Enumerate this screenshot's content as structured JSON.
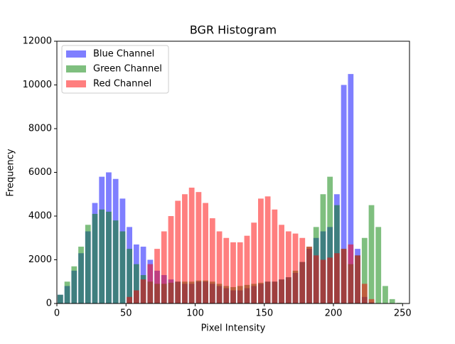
{
  "chart_data": {
    "type": "histogram",
    "title": "BGR Histogram",
    "x_label": "Pixel Intensity",
    "y_label": "Frequency",
    "bins": [
      0,
      5,
      10,
      15,
      20,
      25,
      30,
      35,
      40,
      45,
      50,
      55,
      60,
      65,
      70,
      75,
      80,
      85,
      90,
      95,
      100,
      105,
      110,
      115,
      120,
      125,
      130,
      135,
      140,
      145,
      150,
      155,
      160,
      165,
      170,
      175,
      180,
      185,
      190,
      195,
      200,
      205,
      210,
      215,
      220,
      225,
      230,
      235,
      240,
      245,
      250,
      255
    ],
    "series": [
      {
        "name": "Blue Channel",
        "color": "#0000ff",
        "values": [
          400,
          800,
          1500,
          2300,
          3300,
          4600,
          5800,
          6000,
          5700,
          4800,
          3500,
          2700,
          2600,
          2000,
          1500,
          1300,
          1100,
          1000,
          900,
          900,
          1000,
          1000,
          900,
          800,
          700,
          600,
          600,
          700,
          800,
          900,
          1000,
          1000,
          1100,
          1200,
          1400,
          1900,
          2500,
          3000,
          3300,
          3500,
          5000,
          10000,
          10500,
          2500,
          300,
          50,
          0,
          0,
          0,
          0,
          0
        ]
      },
      {
        "name": "Green Channel",
        "color": "#008000",
        "values": [
          400,
          1000,
          1700,
          2600,
          3600,
          4100,
          4300,
          4200,
          3800,
          3300,
          2500,
          1800,
          1300,
          1000,
          900,
          900,
          950,
          1000,
          1000,
          1000,
          1050,
          1050,
          1000,
          900,
          800,
          750,
          800,
          850,
          900,
          950,
          1000,
          1000,
          1100,
          1200,
          1500,
          1900,
          2600,
          3500,
          5000,
          5800,
          4500,
          2500,
          1800,
          2200,
          3000,
          4500,
          3500,
          800,
          200,
          30,
          0
        ]
      },
      {
        "name": "Red Channel",
        "color": "#ff0000",
        "values": [
          0,
          0,
          0,
          0,
          0,
          0,
          0,
          0,
          0,
          0,
          300,
          600,
          1100,
          1800,
          2500,
          3300,
          4000,
          4700,
          5000,
          5300,
          5100,
          4600,
          3900,
          3300,
          3000,
          2800,
          2800,
          3100,
          3700,
          4800,
          4900,
          4300,
          3600,
          3300,
          3200,
          3000,
          2600,
          2200,
          2000,
          2100,
          2300,
          2500,
          2700,
          2200,
          900,
          200,
          0,
          0,
          0,
          0,
          0
        ]
      }
    ],
    "alpha": 0.5,
    "xlim": [
      0,
      255
    ],
    "xticks": [
      0,
      50,
      100,
      150,
      200,
      250
    ],
    "ylim": [
      0,
      12000
    ],
    "yticks": [
      0,
      2000,
      4000,
      6000,
      8000,
      10000,
      12000
    ],
    "legend": "upper left"
  }
}
